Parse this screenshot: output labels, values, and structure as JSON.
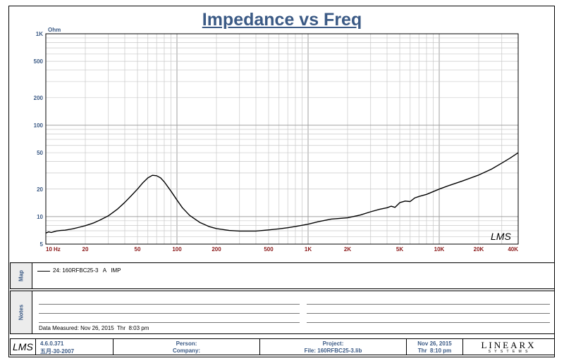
{
  "title": "Impedance vs Freq",
  "chart_data": {
    "type": "line",
    "title": "Impedance vs Freq",
    "xscale": "log",
    "yscale": "log",
    "xlim": [
      10,
      40000
    ],
    "ylim": [
      5,
      1000
    ],
    "ylabel": "Ohm",
    "xlabel_unit": "Hz",
    "x_ticks": [
      {
        "v": 10,
        "label": "10"
      },
      {
        "v": 20,
        "label": "20"
      },
      {
        "v": 50,
        "label": "50"
      },
      {
        "v": 100,
        "label": "100"
      },
      {
        "v": 200,
        "label": "200"
      },
      {
        "v": 500,
        "label": "500"
      },
      {
        "v": 1000,
        "label": "1K"
      },
      {
        "v": 2000,
        "label": "2K"
      },
      {
        "v": 5000,
        "label": "5K"
      },
      {
        "v": 10000,
        "label": "10K"
      },
      {
        "v": 20000,
        "label": "20K"
      },
      {
        "v": 40000,
        "label": "40K"
      }
    ],
    "y_ticks": [
      {
        "v": 5,
        "label": "5"
      },
      {
        "v": 10,
        "label": "10"
      },
      {
        "v": 20,
        "label": "20"
      },
      {
        "v": 50,
        "label": "50"
      },
      {
        "v": 100,
        "label": "100"
      },
      {
        "v": 200,
        "label": "200"
      },
      {
        "v": 500,
        "label": "500"
      },
      {
        "v": 1000,
        "label": "1K"
      }
    ],
    "grid": true,
    "series": [
      {
        "name": "24: 160RFBC25-3   A   IMP",
        "color": "#000000",
        "points": [
          [
            10,
            6.6
          ],
          [
            10.5,
            6.8
          ],
          [
            11,
            6.7
          ],
          [
            12,
            6.95
          ],
          [
            13,
            7.05
          ],
          [
            14,
            7.1
          ],
          [
            16,
            7.35
          ],
          [
            18,
            7.65
          ],
          [
            20,
            7.95
          ],
          [
            23,
            8.5
          ],
          [
            26,
            9.2
          ],
          [
            30,
            10.2
          ],
          [
            35,
            12.0
          ],
          [
            40,
            14.3
          ],
          [
            45,
            17.0
          ],
          [
            50,
            20.0
          ],
          [
            55,
            23.5
          ],
          [
            60,
            26.5
          ],
          [
            65,
            28.3
          ],
          [
            70,
            28.0
          ],
          [
            75,
            26.5
          ],
          [
            80,
            24.0
          ],
          [
            90,
            19.0
          ],
          [
            100,
            15.2
          ],
          [
            110,
            12.5
          ],
          [
            125,
            10.3
          ],
          [
            150,
            8.6
          ],
          [
            175,
            7.8
          ],
          [
            200,
            7.4
          ],
          [
            250,
            7.05
          ],
          [
            300,
            6.95
          ],
          [
            400,
            6.95
          ],
          [
            500,
            7.15
          ],
          [
            600,
            7.35
          ],
          [
            700,
            7.55
          ],
          [
            800,
            7.8
          ],
          [
            1000,
            8.25
          ],
          [
            1200,
            8.8
          ],
          [
            1500,
            9.4
          ],
          [
            2000,
            9.7
          ],
          [
            2500,
            10.4
          ],
          [
            3000,
            11.3
          ],
          [
            3500,
            12.0
          ],
          [
            4000,
            12.5
          ],
          [
            4300,
            13.0
          ],
          [
            4600,
            12.6
          ],
          [
            5000,
            14.2
          ],
          [
            5500,
            14.8
          ],
          [
            6000,
            14.6
          ],
          [
            6500,
            16.0
          ],
          [
            7000,
            16.6
          ],
          [
            8000,
            17.5
          ],
          [
            10000,
            20.0
          ],
          [
            12000,
            22.0
          ],
          [
            15000,
            24.5
          ],
          [
            20000,
            28.5
          ],
          [
            25000,
            33.0
          ],
          [
            30000,
            38.5
          ],
          [
            35000,
            44.0
          ],
          [
            40000,
            50.0
          ]
        ]
      }
    ]
  },
  "watermark": "LMS",
  "map_panel": {
    "tab_label": "Map",
    "legend_entry": "24: 160RFBC25-3   A   IMP"
  },
  "notes_panel": {
    "tab_label": "Notes",
    "measured": "Data Measured: Nov 26, 2015  Thr  8:03 pm"
  },
  "footer": {
    "logo": "LMS",
    "version": "4.6.0.371",
    "build": "五月-30-2007",
    "person_label": "Person:",
    "company_label": "Company:",
    "project_label": "Project:",
    "file_label": "File: 160RFBC25-3.lib",
    "date": "Nov 26, 2015",
    "time": "Thr  8:10 pm",
    "brand_top": "LINEARX",
    "brand_bottom": "S Y S T E M S"
  },
  "colors": {
    "accent": "#3b5a85",
    "tick_label": "#8b1a1a",
    "grid": "#c8c8c8",
    "grid_major": "#a0a0a0"
  }
}
